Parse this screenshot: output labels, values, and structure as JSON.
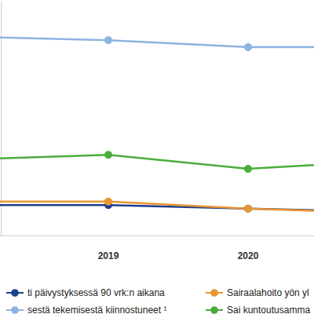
{
  "chart_data": {
    "type": "line",
    "categories": [
      null,
      "2019",
      "2020",
      null
    ],
    "series": [
      {
        "name": "ti päivystyksessä 90 vrk:n aikana",
        "color": "#1f3f8f",
        "values": [
          13.0,
          13.0,
          11.5,
          10.0
        ]
      },
      {
        "name": "sestä tekemisestä kiinnostuneet ¹",
        "color": "#8db3e2",
        "values": [
          85.0,
          83.5,
          80.5,
          80.5
        ]
      },
      {
        "name": "Sairaalahoito yön yl",
        "color": "#e8972f",
        "values": [
          14.5,
          14.5,
          11.5,
          9.5
        ]
      },
      {
        "name": "Sai kuntoutusamma",
        "color": "#4aad3c",
        "values": [
          32.5,
          34.5,
          28.5,
          32.0
        ]
      }
    ],
    "ylim": [
      0,
      100
    ],
    "grid": false,
    "tick_labels": "x",
    "legend": "bottom",
    "marker": "circle"
  }
}
